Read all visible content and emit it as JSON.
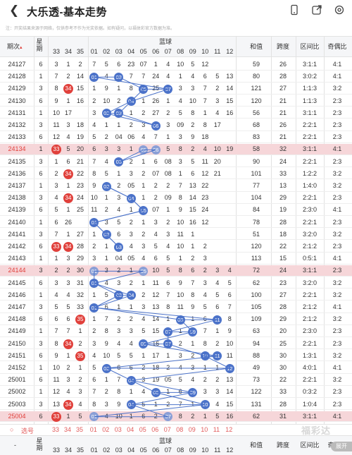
{
  "header": {
    "back_icon": "chevron-left-icon",
    "title": "大乐透-基本走势",
    "dropdown_icon": "chevron-down-icon",
    "icons": [
      "phone-icon",
      "share-icon",
      "settings-icon"
    ]
  },
  "notice": "注：开奖结果来源于网络，仅供参考不作为兑奖依据。如有疑问，以福体彩官方数据为准。",
  "columns": {
    "period": "期次",
    "weekday_top": "星",
    "weekday_bottom": "期",
    "front_tail": [
      "33",
      "34",
      "35"
    ],
    "blue_title": "蓝球",
    "blue": [
      "01",
      "02",
      "03",
      "04",
      "05",
      "06",
      "07",
      "08",
      "09",
      "10",
      "11",
      "12"
    ],
    "sum": "和值",
    "span": "跨度",
    "zone": "区间比",
    "odd_even": "奇偶比"
  },
  "rows": [
    {
      "p": "24127",
      "w": "6",
      "t": [
        "3",
        "1",
        "2"
      ],
      "b": [
        "7",
        "5",
        "6",
        "23",
        "07",
        "1",
        "4",
        "10",
        "5",
        "12"
      ],
      "sum": "59",
      "span": "26",
      "zone": "3:1:1",
      "oe": "4:1",
      "balls": [
        7,
        10
      ]
    },
    {
      "p": "24128",
      "w": "1",
      "t": [
        "7",
        "2",
        "14"
      ],
      "b": [
        "01",
        "4",
        "03",
        "7",
        "7",
        "24",
        "4",
        "1",
        "4",
        "6",
        "5",
        "13"
      ],
      "sum": "80",
      "span": "28",
      "zone": "3:0:2",
      "oe": "4:1",
      "balls": [
        1,
        3
      ]
    },
    {
      "p": "24129",
      "w": "3",
      "t": [
        "8",
        "34",
        "15"
      ],
      "b": [
        "1",
        "9",
        "1",
        "8",
        "05",
        "25",
        "07",
        "3",
        "3",
        "7",
        "2",
        "14"
      ],
      "sum": "121",
      "span": "27",
      "zone": "1:1:3",
      "oe": "3:2",
      "balls": [
        5,
        7
      ]
    },
    {
      "p": "24130",
      "w": "6",
      "t": [
        "9",
        "1",
        "16"
      ],
      "b": [
        "2",
        "10",
        "2",
        "04",
        "1",
        "26",
        "1",
        "4",
        "10",
        "7",
        "3",
        "15"
      ],
      "sum": "120",
      "span": "21",
      "zone": "1:1:3",
      "oe": "2:3",
      "balls": [
        4,
        10
      ]
    },
    {
      "p": "24131",
      "w": "1",
      "t": [
        "10",
        "17"
      ],
      "b": [
        "3",
        "02",
        "03",
        "1",
        "2",
        "27",
        "2",
        "5",
        "8",
        "1",
        "4",
        "16"
      ],
      "sum": "56",
      "span": "21",
      "zone": "3:1:1",
      "oe": "2:3",
      "balls": [
        2,
        3
      ]
    },
    {
      "p": "24132",
      "w": "3",
      "t": [
        "11",
        "3",
        "18"
      ],
      "b": [
        "4",
        "1",
        "1",
        "2",
        "3",
        "06",
        "3",
        "09",
        "2",
        "8",
        "17"
      ],
      "sum": "68",
      "span": "26",
      "zone": "2:2:1",
      "oe": "2:3",
      "balls": [
        6,
        9
      ]
    },
    {
      "p": "24133",
      "w": "6",
      "t": [
        "12",
        "4",
        "19"
      ],
      "b": [
        "5",
        "2",
        "04",
        "06",
        "4",
        "7",
        "1",
        "3",
        "9",
        "18"
      ],
      "sum": "83",
      "span": "21",
      "zone": "2:2:1",
      "oe": "2:3",
      "balls": [
        4,
        6
      ]
    },
    {
      "p": "24134",
      "w": "1",
      "t": [
        "33",
        "5",
        "20"
      ],
      "b": [
        "6",
        "3",
        "3",
        "1",
        "05",
        "06",
        "5",
        "8",
        "2",
        "4",
        "10",
        "19"
      ],
      "sum": "58",
      "span": "32",
      "zone": "3:1:1",
      "oe": "4:1",
      "balls": [
        5,
        6
      ],
      "hl": true
    },
    {
      "p": "24135",
      "w": "3",
      "t": [
        "1",
        "6",
        "21"
      ],
      "b": [
        "7",
        "4",
        "03",
        "2",
        "1",
        "6",
        "08",
        "3",
        "5",
        "11",
        "20"
      ],
      "sum": "90",
      "span": "24",
      "zone": "2:2:1",
      "oe": "2:3",
      "balls": [
        3,
        8
      ]
    },
    {
      "p": "24136",
      "w": "6",
      "t": [
        "2",
        "34",
        "22"
      ],
      "b": [
        "8",
        "5",
        "1",
        "3",
        "2",
        "07",
        "08",
        "1",
        "6",
        "12",
        "21"
      ],
      "sum": "101",
      "span": "33",
      "zone": "1:2:2",
      "oe": "3:2",
      "balls": [
        7,
        8
      ]
    },
    {
      "p": "24137",
      "w": "1",
      "t": [
        "3",
        "1",
        "23"
      ],
      "b": [
        "9",
        "02",
        "2",
        "05",
        "1",
        "2",
        "2",
        "7",
        "13",
        "22"
      ],
      "sum": "77",
      "span": "13",
      "zone": "1:4:0",
      "oe": "3:2",
      "balls": [
        2,
        5
      ]
    },
    {
      "p": "24138",
      "w": "3",
      "t": [
        "4",
        "34",
        "24"
      ],
      "b": [
        "10",
        "1",
        "3",
        "04",
        "1",
        "2",
        "09",
        "8",
        "14",
        "23"
      ],
      "sum": "104",
      "span": "29",
      "zone": "2:2:1",
      "oe": "2:3",
      "balls": [
        4,
        9
      ]
    },
    {
      "p": "24139",
      "w": "6",
      "t": [
        "5",
        "1",
        "25"
      ],
      "b": [
        "11",
        "2",
        "4",
        "1",
        "05",
        "07",
        "1",
        "9",
        "15",
        "24"
      ],
      "sum": "84",
      "span": "19",
      "zone": "2:3:0",
      "oe": "4:1",
      "balls": [
        5,
        7
      ]
    },
    {
      "p": "24140",
      "w": "1",
      "t": [
        "6",
        "26"
      ],
      "b": [
        "01",
        "3",
        "5",
        "2",
        "1",
        "3",
        "2",
        "10",
        "16",
        "12"
      ],
      "sum": "78",
      "span": "28",
      "zone": "2:2:1",
      "oe": "2:3",
      "balls": [
        1,
        12
      ]
    },
    {
      "p": "24141",
      "w": "3",
      "t": [
        "7",
        "1",
        "27"
      ],
      "b": [
        "1",
        "02",
        "6",
        "3",
        "2",
        "4",
        "3",
        "11",
        "1"
      ],
      "sum": "51",
      "span": "18",
      "zone": "3:2:0",
      "oe": "3:2",
      "balls": [
        2,
        11
      ]
    },
    {
      "p": "24142",
      "w": "6",
      "t": [
        "33",
        "34",
        "28"
      ],
      "b": [
        "2",
        "1",
        "03",
        "4",
        "3",
        "5",
        "4",
        "10",
        "1",
        "2"
      ],
      "sum": "120",
      "span": "22",
      "zone": "2:1:2",
      "oe": "2:3",
      "balls": [
        3,
        10
      ]
    },
    {
      "p": "24143",
      "w": "1",
      "t": [
        "1",
        "3",
        "29"
      ],
      "b": [
        "3",
        "1",
        "04",
        "05",
        "4",
        "6",
        "5",
        "1",
        "2",
        "3"
      ],
      "sum": "113",
      "span": "15",
      "zone": "0:5:1",
      "oe": "4:1",
      "balls": [
        4,
        5
      ]
    },
    {
      "p": "24144",
      "w": "3",
      "t": [
        "2",
        "2",
        "30"
      ],
      "b": [
        "01",
        "3",
        "2",
        "1",
        "05",
        "10",
        "5",
        "8",
        "6",
        "2",
        "3",
        "4"
      ],
      "sum": "72",
      "span": "24",
      "zone": "3:1:1",
      "oe": "2:3",
      "balls": [
        1,
        5
      ],
      "hl": true
    },
    {
      "p": "24145",
      "w": "6",
      "t": [
        "3",
        "3",
        "31"
      ],
      "b": [
        "01",
        "4",
        "3",
        "2",
        "1",
        "11",
        "6",
        "9",
        "7",
        "3",
        "4",
        "5"
      ],
      "sum": "62",
      "span": "23",
      "zone": "3:2:0",
      "oe": "3:2",
      "balls": [
        1
      ]
    },
    {
      "p": "24146",
      "w": "1",
      "t": [
        "4",
        "4",
        "32"
      ],
      "b": [
        "1",
        "5",
        "03",
        "04",
        "2",
        "12",
        "7",
        "10",
        "8",
        "4",
        "5",
        "6"
      ],
      "sum": "100",
      "span": "27",
      "zone": "2:2:1",
      "oe": "3:2",
      "balls": [
        3,
        4
      ]
    },
    {
      "p": "24147",
      "w": "3",
      "t": [
        "5",
        "5",
        "33"
      ],
      "b": [
        "01",
        "6",
        "1",
        "1",
        "3",
        "13",
        "8",
        "11",
        "9",
        "5",
        "6",
        "7"
      ],
      "sum": "105",
      "span": "28",
      "zone": "2:1:2",
      "oe": "4:1",
      "balls": [
        1
      ]
    },
    {
      "p": "24148",
      "w": "6",
      "t": [
        "6",
        "6",
        "35"
      ],
      "b": [
        "1",
        "7",
        "2",
        "2",
        "4",
        "14",
        "1",
        "08",
        "1",
        "6",
        "11",
        "8"
      ],
      "sum": "109",
      "span": "29",
      "zone": "2:1:2",
      "oe": "3:2",
      "balls": [
        8,
        11
      ]
    },
    {
      "p": "24149",
      "w": "1",
      "t": [
        "7",
        "7",
        "1"
      ],
      "b": [
        "2",
        "8",
        "3",
        "3",
        "5",
        "15",
        "07",
        "1",
        "09",
        "7",
        "1",
        "9"
      ],
      "sum": "63",
      "span": "20",
      "zone": "2:3:0",
      "oe": "2:3",
      "balls": [
        7,
        9
      ]
    },
    {
      "p": "24150",
      "w": "3",
      "t": [
        "8",
        "34",
        "2"
      ],
      "b": [
        "3",
        "9",
        "4",
        "4",
        "05",
        "16",
        "07",
        "2",
        "1",
        "8",
        "2",
        "10"
      ],
      "sum": "94",
      "span": "25",
      "zone": "2:2:1",
      "oe": "2:3",
      "balls": [
        5,
        7
      ]
    },
    {
      "p": "24151",
      "w": "6",
      "t": [
        "9",
        "1",
        "35"
      ],
      "b": [
        "4",
        "10",
        "5",
        "5",
        "1",
        "17",
        "1",
        "3",
        "2",
        "10",
        "11",
        "11"
      ],
      "sum": "88",
      "span": "30",
      "zone": "1:3:1",
      "oe": "3:2",
      "balls": [
        10,
        11
      ]
    },
    {
      "p": "24152",
      "w": "1",
      "t": [
        "10",
        "2",
        "1"
      ],
      "b": [
        "5",
        "02",
        "6",
        "6",
        "2",
        "18",
        "2",
        "4",
        "3",
        "1",
        "1",
        "12"
      ],
      "sum": "49",
      "span": "30",
      "zone": "4:0:1",
      "oe": "4:1",
      "balls": [
        2,
        12
      ]
    },
    {
      "p": "25001",
      "w": "6",
      "t": [
        "11",
        "3",
        "2"
      ],
      "b": [
        "6",
        "1",
        "7",
        "04",
        "3",
        "19",
        "05",
        "5",
        "4",
        "2",
        "2",
        "13"
      ],
      "sum": "73",
      "span": "22",
      "zone": "2:2:1",
      "oe": "3:2",
      "balls": [
        4,
        5
      ]
    },
    {
      "p": "25002",
      "w": "1",
      "t": [
        "12",
        "4",
        "3"
      ],
      "b": [
        "7",
        "2",
        "8",
        "1",
        "4",
        "06",
        "1",
        "6",
        "09",
        "3",
        "3",
        "14"
      ],
      "sum": "122",
      "span": "33",
      "zone": "0:3:2",
      "oe": "2:3",
      "balls": [
        6,
        9
      ]
    },
    {
      "p": "25003",
      "w": "3",
      "t": [
        "13",
        "34",
        "4"
      ],
      "b": [
        "8",
        "3",
        "9",
        "04",
        "5",
        "1",
        "2",
        "7",
        "1",
        "10",
        "4",
        "15"
      ],
      "sum": "131",
      "span": "28",
      "zone": "1:0:4",
      "oe": "2:3",
      "balls": [
        4,
        10
      ]
    },
    {
      "p": "25004",
      "w": "6",
      "t": [
        "33",
        "1",
        "5"
      ],
      "b": [
        "01",
        "4",
        "10",
        "1",
        "6",
        "2",
        "07",
        "8",
        "2",
        "1",
        "5",
        "16"
      ],
      "sum": "62",
      "span": "31",
      "zone": "3:1:1",
      "oe": "4:1",
      "balls": [
        1,
        7
      ],
      "hl": true
    }
  ],
  "picker": {
    "label": "选号",
    "tails": [
      "33",
      "34",
      "35"
    ],
    "blue": [
      "01",
      "02",
      "03",
      "04",
      "05",
      "06",
      "07",
      "08",
      "09",
      "10",
      "11",
      "12"
    ]
  },
  "footer": {
    "dash": "-",
    "weekday_top": "星",
    "weekday_bottom": "期",
    "tails": [
      "33",
      "34",
      "35"
    ],
    "blue_title": "蓝球",
    "blue": [
      "01",
      "02",
      "03",
      "04",
      "05",
      "06",
      "07",
      "08",
      "09",
      "10",
      "11",
      "12"
    ],
    "sum": "和值",
    "span": "跨度",
    "zone": "区间比",
    "oe": "奇偶比"
  },
  "watermark": "福彩达",
  "unfold": "展开"
}
